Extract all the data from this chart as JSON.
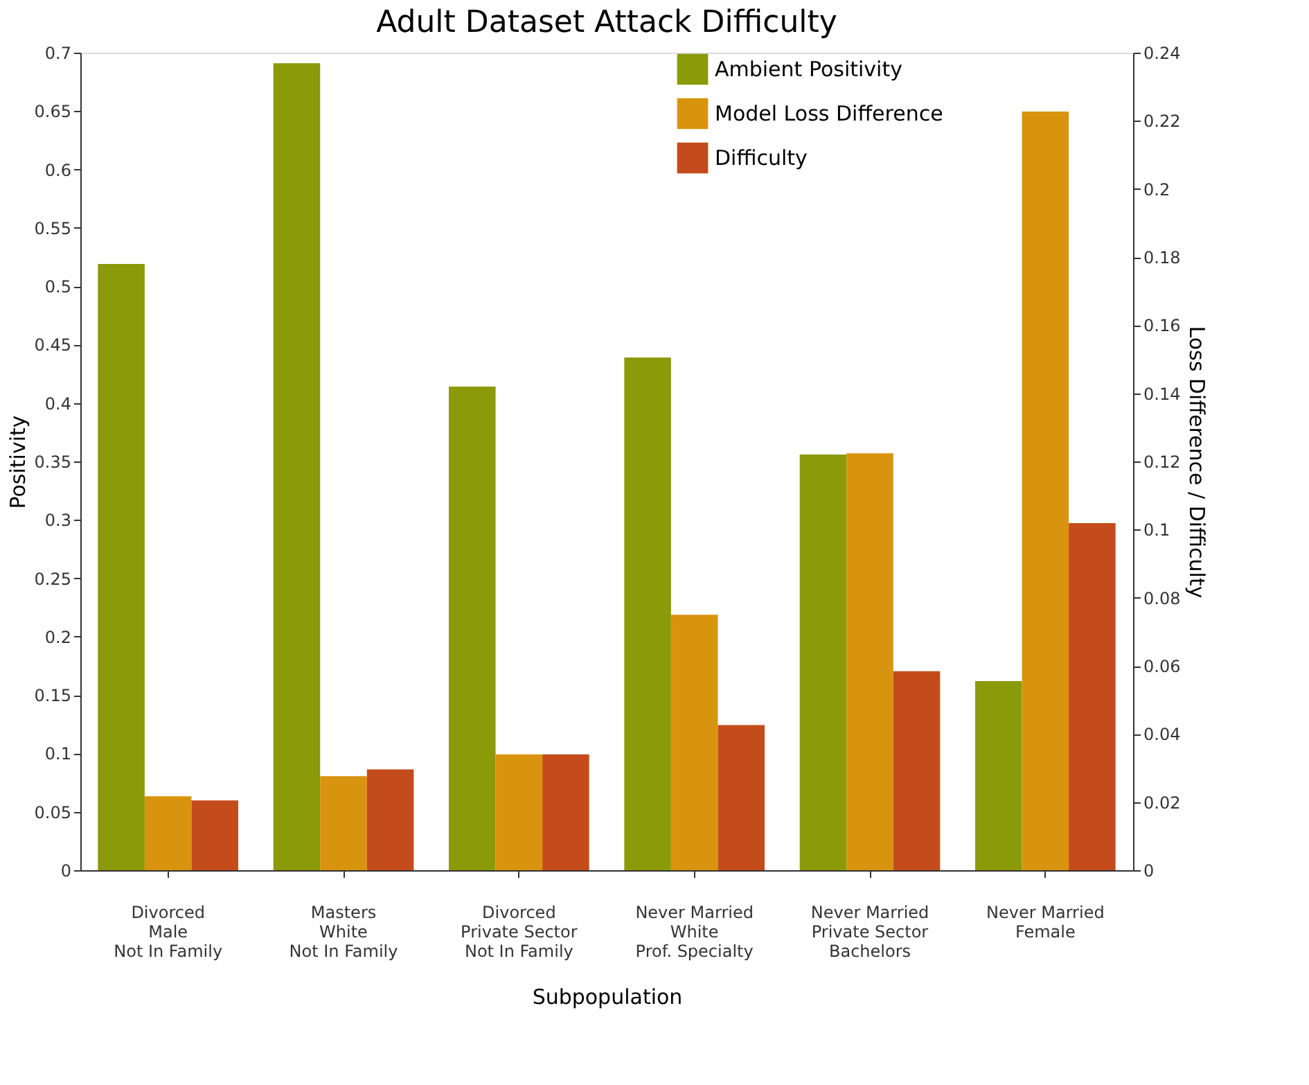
{
  "chart_data": {
    "type": "bar",
    "title": "Adult Dataset Attack Difficulty",
    "xlabel": "Subpopulation",
    "ylabel": "Positivity",
    "y2label": "Loss Difference / Difficulty",
    "categories": [
      "Divorced\nMale\nNot In Family",
      "Masters\nWhite\nNot In Family",
      "Divorced\nPrivate Sector\nNot In Family",
      "Never Married\nWhite\nProf. Specialty",
      "Never Married\nPrivate Sector\nBachelors",
      "Never Married\nFemale"
    ],
    "series": [
      {
        "name": "Ambient Positivity",
        "color": "#8a9a08",
        "values": [
          0.519,
          0.691,
          0.414,
          0.439,
          0.356,
          0.162
        ]
      },
      {
        "name": "Model Loss Difference",
        "color": "#d9940f",
        "axis": "y2",
        "values": [
          0.0217,
          0.0276,
          0.034,
          0.075,
          0.1224,
          0.2227
        ]
      },
      {
        "name": "Difficulty",
        "color": "#c44b1c",
        "axis": "y2",
        "values": [
          0.0205,
          0.0296,
          0.034,
          0.0426,
          0.0584,
          0.1019
        ]
      }
    ],
    "ylim": [
      0,
      0.7
    ],
    "yticks": [
      0,
      0.05,
      0.1,
      0.15,
      0.2,
      0.25,
      0.3,
      0.35,
      0.4,
      0.45,
      0.5,
      0.55,
      0.6,
      0.65,
      0.7
    ],
    "y2lim": [
      0,
      0.24
    ],
    "y2ticks": [
      0,
      0.02,
      0.04,
      0.06,
      0.08,
      0.1,
      0.12,
      0.14,
      0.16,
      0.18,
      0.2,
      0.22,
      0.24
    ],
    "grid": false,
    "legend": "top right"
  }
}
